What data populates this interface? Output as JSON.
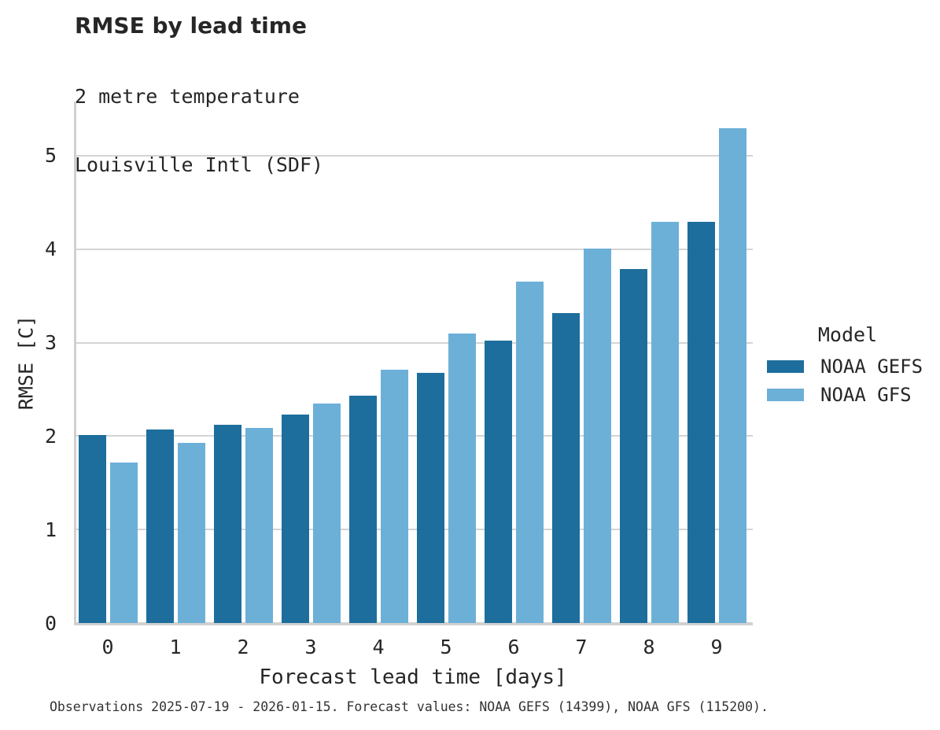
{
  "title": "RMSE by lead time",
  "subtitle_lines": [
    "2 metre temperature",
    "Louisville Intl (SDF)"
  ],
  "footer": "Observations 2025-07-19 - 2026-01-15. Forecast values: NOAA GEFS (14399), NOAA GFS (115200).",
  "colors": {
    "gefs_dark_blue": "#1d6e9c",
    "gfs_light_blue": "#6cb0d8",
    "gridline_gray": "#d4d4d4",
    "spine_gray": "#d0d0d0",
    "text": "#262626"
  },
  "legend": {
    "title": "Model",
    "items": [
      {
        "label": "NOAA GEFS",
        "color": "#1d6e9c"
      },
      {
        "label": "NOAA GFS",
        "color": "#6cb0d8"
      }
    ]
  },
  "chart_data": {
    "type": "bar",
    "title": "RMSE by lead time",
    "subtitle": "2 metre temperature — Louisville Intl (SDF)",
    "xlabel": "Forecast lead time [days]",
    "ylabel": "RMSE [C]",
    "categories": [
      "0",
      "1",
      "2",
      "3",
      "4",
      "5",
      "6",
      "7",
      "8",
      "9"
    ],
    "series": [
      {
        "name": "NOAA GEFS",
        "color": "#1d6e9c",
        "values": [
          2.01,
          2.07,
          2.12,
          2.23,
          2.43,
          2.68,
          3.02,
          3.32,
          3.79,
          4.29
        ]
      },
      {
        "name": "NOAA GFS",
        "color": "#6cb0d8",
        "values": [
          1.72,
          1.93,
          2.09,
          2.35,
          2.71,
          3.1,
          3.65,
          4.01,
          4.29,
          5.29
        ]
      }
    ],
    "ylim": [
      0,
      5.58
    ],
    "yticks": [
      0,
      1,
      2,
      3,
      4,
      5
    ],
    "grid": true,
    "legend_title": "Model",
    "legend_position": "center-right"
  }
}
